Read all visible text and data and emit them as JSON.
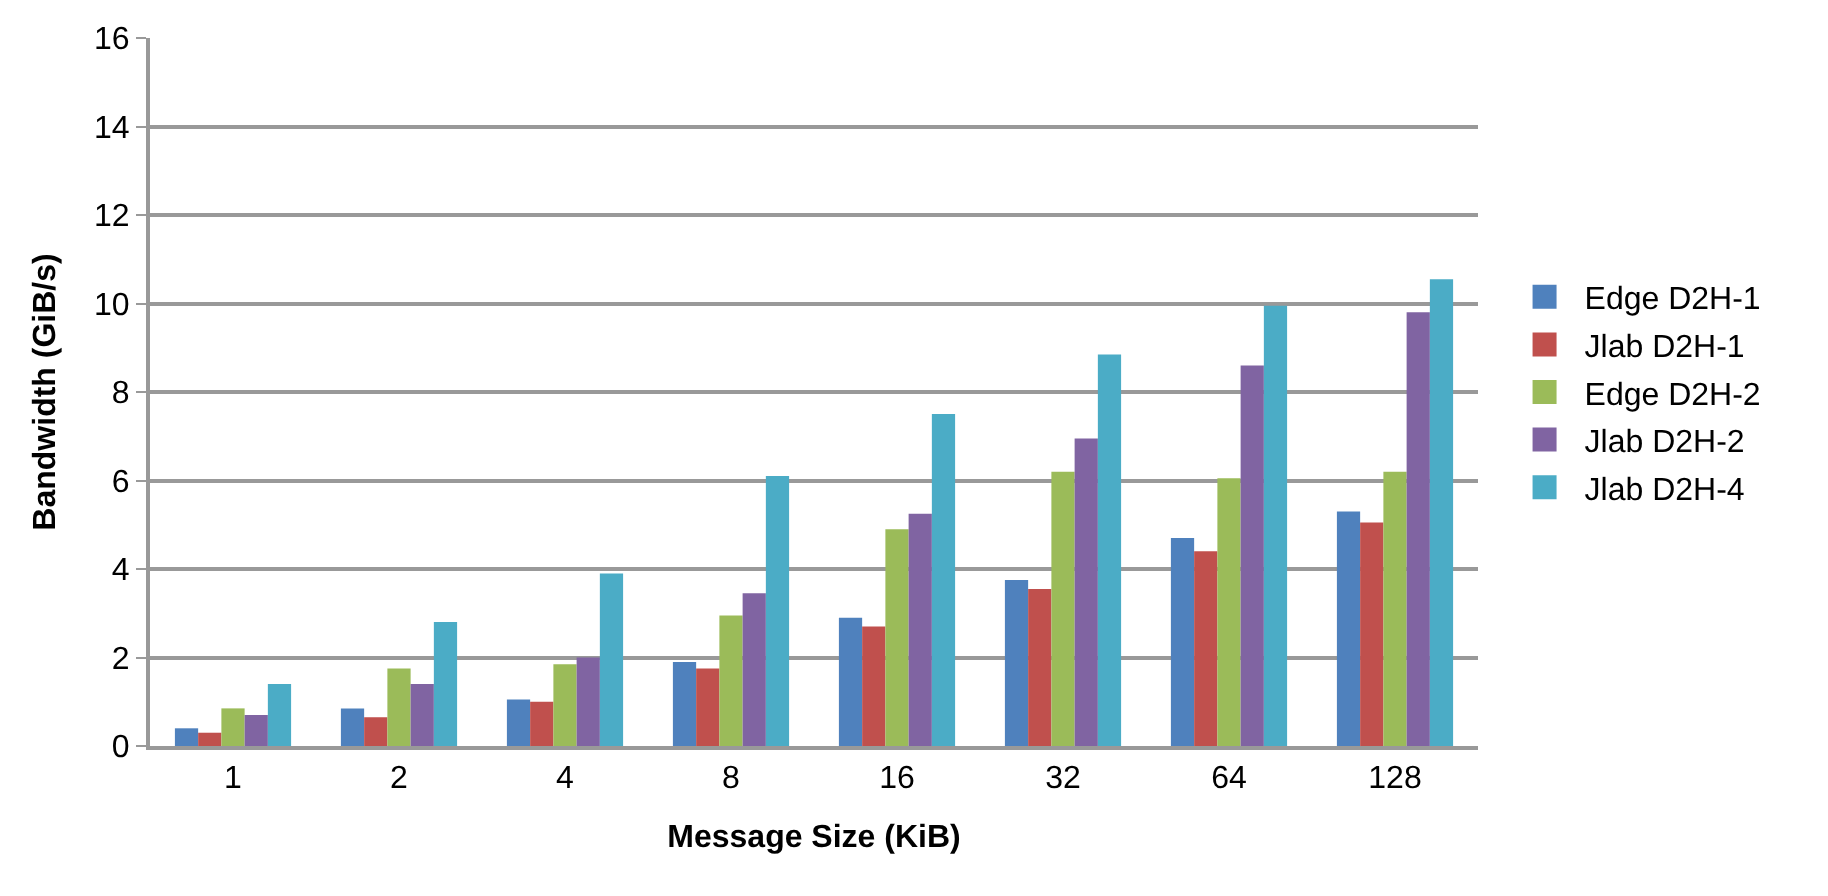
{
  "chart_data": {
    "type": "bar",
    "xlabel": "Message Size (KiB)",
    "ylabel": "Bandwidth (GiB/s)",
    "categories": [
      "1",
      "2",
      "4",
      "8",
      "16",
      "32",
      "64",
      "128"
    ],
    "series": [
      {
        "name": "Edge D2H-1",
        "color": "#4f81bd",
        "values": [
          0.4,
          0.85,
          1.05,
          1.9,
          2.9,
          3.75,
          4.7,
          5.3
        ]
      },
      {
        "name": "Jlab D2H-1",
        "color": "#c0504d",
        "values": [
          0.3,
          0.65,
          1.0,
          1.75,
          2.7,
          3.55,
          4.4,
          5.05
        ]
      },
      {
        "name": "Edge D2H-2",
        "color": "#9bbb59",
        "values": [
          0.85,
          1.75,
          1.85,
          2.95,
          4.9,
          6.2,
          6.05,
          6.2
        ]
      },
      {
        "name": "Jlab D2H-2",
        "color": "#8064a2",
        "values": [
          0.7,
          1.4,
          2.0,
          3.45,
          5.25,
          6.95,
          8.6,
          9.8
        ]
      },
      {
        "name": "Jlab D2H-4",
        "color": "#4bacc6",
        "values": [
          1.4,
          2.8,
          3.9,
          6.1,
          7.5,
          8.85,
          9.95,
          10.55
        ]
      }
    ],
    "ylim": [
      0,
      16
    ],
    "yticks": [
      0,
      2,
      4,
      6,
      8,
      10,
      12,
      14,
      16
    ],
    "grid": "y",
    "legend": "right"
  }
}
